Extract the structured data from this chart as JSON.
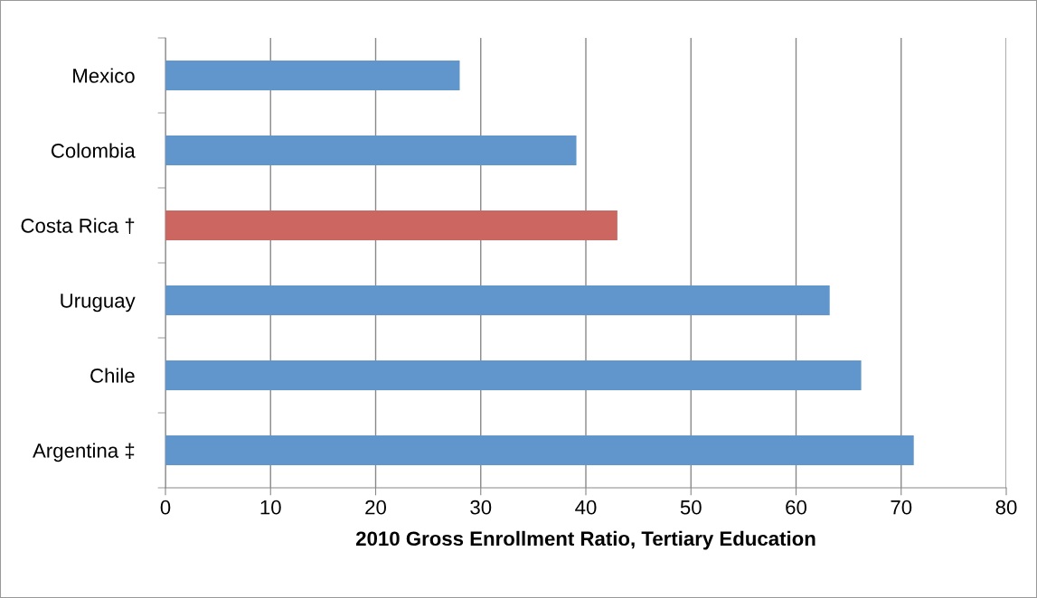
{
  "chart_data": {
    "type": "bar",
    "orientation": "horizontal",
    "categories": [
      "Mexico",
      "Colombia",
      "Costa Rica †",
      "Uruguay",
      "Chile",
      "Argentina ‡"
    ],
    "values": [
      28.0,
      39.1,
      43.0,
      63.2,
      66.2,
      71.2
    ],
    "colors": [
      "#6096cc",
      "#6096cc",
      "#cc6660",
      "#6096cc",
      "#6096cc",
      "#6096cc"
    ],
    "xlabel": "2010 Gross Enrollment Ratio, Tertiary Education",
    "xlim": [
      0,
      80
    ],
    "xticks": [
      0,
      10,
      20,
      30,
      40,
      50,
      60,
      70,
      80
    ],
    "grid": "x"
  }
}
